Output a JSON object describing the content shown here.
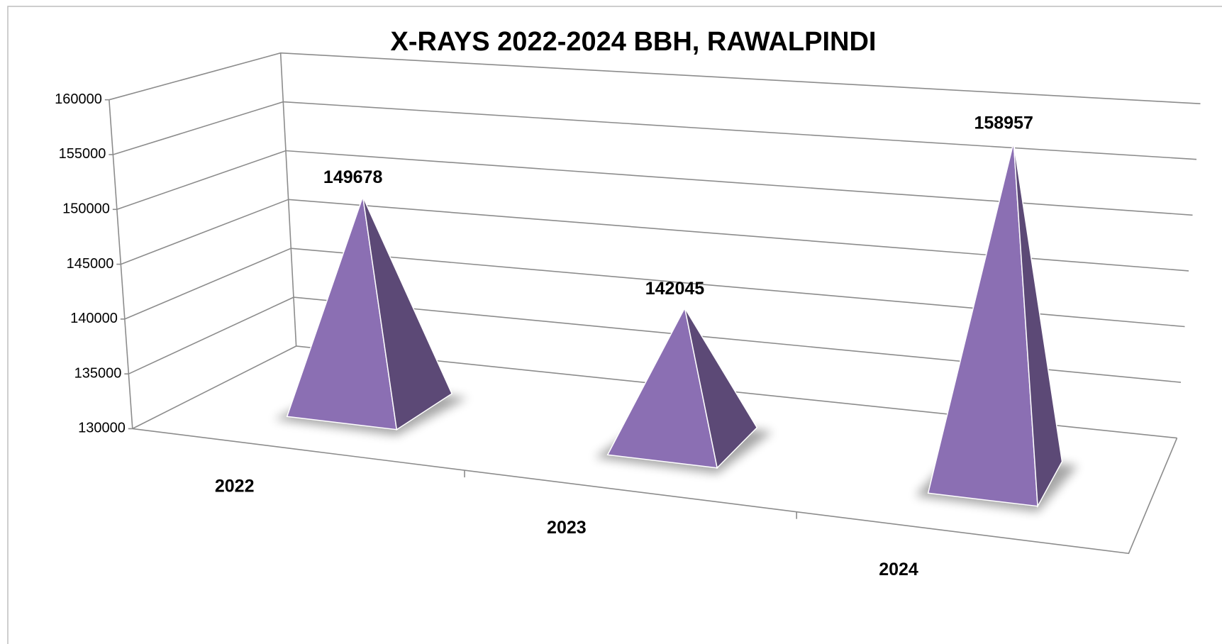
{
  "chart_data": {
    "type": "pyramid3d",
    "title": "X-RAYS 2022-2024 BBH, RAWALPINDI",
    "categories": [
      "2022",
      "2023",
      "2024"
    ],
    "values": [
      149678,
      142045,
      158957
    ],
    "color": "#8b6fb3",
    "ylim": [
      130000,
      160000
    ],
    "yticks": [
      130000,
      135000,
      140000,
      145000,
      150000,
      155000,
      160000
    ],
    "grid": true
  }
}
